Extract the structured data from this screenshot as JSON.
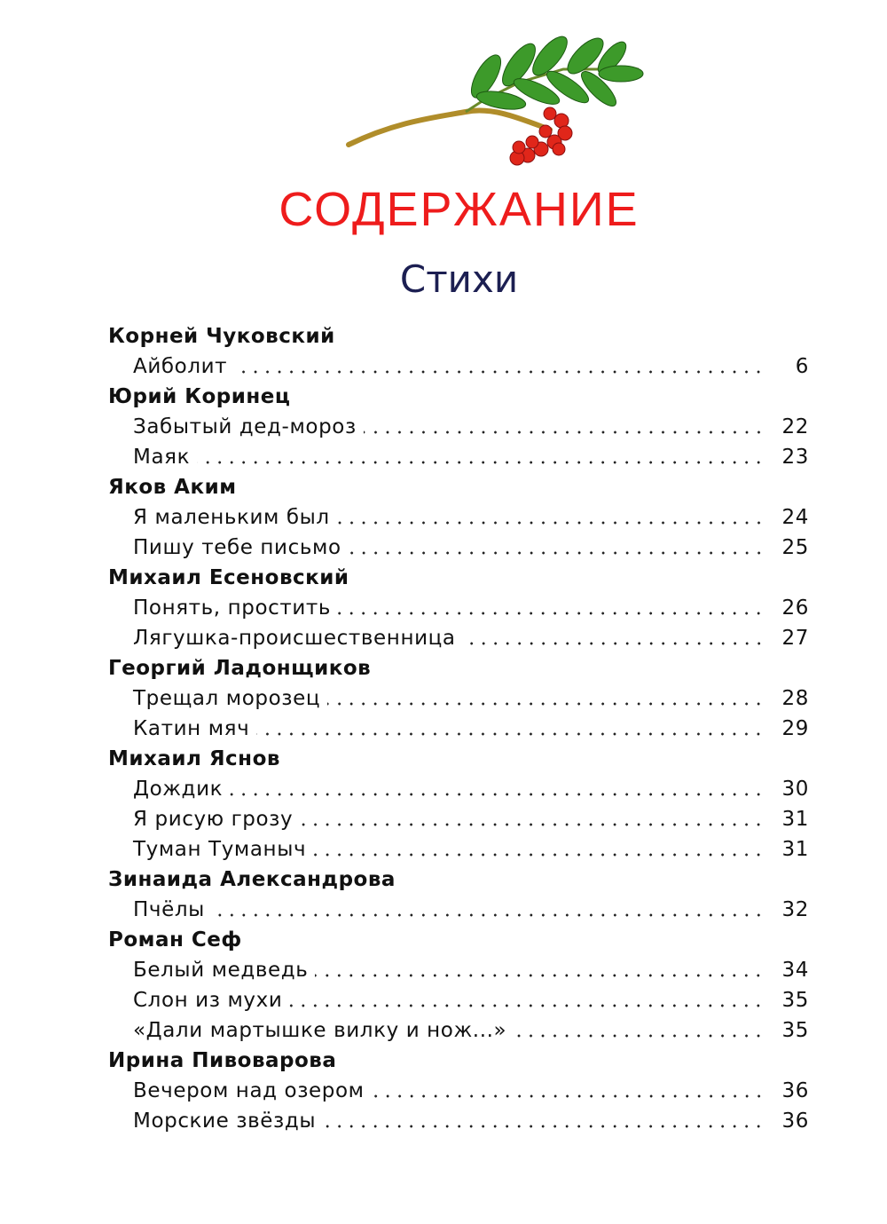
{
  "illustration": "rowan-branch-with-berries",
  "colors": {
    "title": "#ee1c1c",
    "subtitle": "#1c1f52",
    "leaf": "#3d9a2a",
    "berry": "#e0261a"
  },
  "title": "СОДЕРЖАНИЕ",
  "subtitle": "Стихи",
  "sections": [
    {
      "author": "Корней Чуковский",
      "entries": [
        {
          "title": "Айболит",
          "page": "6"
        }
      ]
    },
    {
      "author": "Юрий Коринец",
      "entries": [
        {
          "title": "Забытый дед-мороз",
          "page": "22"
        },
        {
          "title": "Маяк",
          "page": "23"
        }
      ]
    },
    {
      "author": "Яков Аким",
      "entries": [
        {
          "title": "Я маленьким был",
          "page": "24"
        },
        {
          "title": "Пишу тебе письмо",
          "page": "25"
        }
      ]
    },
    {
      "author": "Михаил Есеновский",
      "entries": [
        {
          "title": "Понять, простить",
          "page": "26"
        },
        {
          "title": "Лягушка-происшественница",
          "page": "27"
        }
      ]
    },
    {
      "author": "Георгий Ладонщиков",
      "entries": [
        {
          "title": "Трещал морозец",
          "page": "28"
        },
        {
          "title": "Катин мяч",
          "page": "29"
        }
      ]
    },
    {
      "author": "Михаил Яснов",
      "entries": [
        {
          "title": "Дождик",
          "page": "30"
        },
        {
          "title": "Я рисую грозу",
          "page": "31"
        },
        {
          "title": "Туман Туманыч",
          "page": "31"
        }
      ]
    },
    {
      "author": "Зинаида Александрова",
      "entries": [
        {
          "title": "Пчёлы",
          "page": "32"
        }
      ]
    },
    {
      "author": "Роман Сеф",
      "entries": [
        {
          "title": "Белый медведь",
          "page": "34"
        },
        {
          "title": "Слон из мухи",
          "page": "35"
        },
        {
          "title": "«Дали мартышке вилку и нож...»",
          "page": "35"
        }
      ]
    },
    {
      "author": "Ирина Пивоварова",
      "entries": [
        {
          "title": "Вечером над озером",
          "page": "36"
        },
        {
          "title": "Морские звёзды",
          "page": "36"
        }
      ]
    }
  ]
}
